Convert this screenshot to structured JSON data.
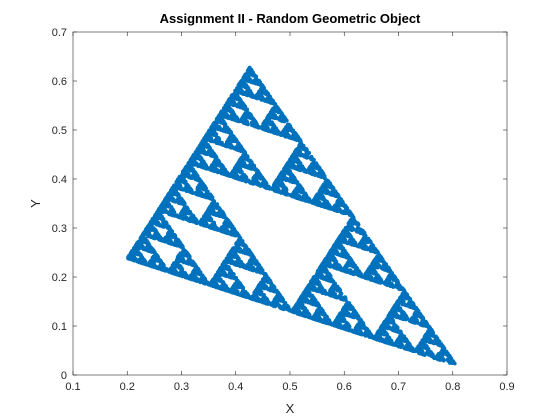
{
  "chart_data": {
    "type": "scatter",
    "title": "Assignment II - Random Geometric Object",
    "xlabel": "X",
    "ylabel": "Y",
    "xlim": [
      0.1,
      0.9
    ],
    "ylim": [
      0,
      0.7
    ],
    "x_ticks": [
      0.1,
      0.2,
      0.3,
      0.4,
      0.5,
      0.6,
      0.7,
      0.8,
      0.9
    ],
    "y_ticks": [
      0,
      0.1,
      0.2,
      0.3,
      0.4,
      0.5,
      0.6,
      0.7
    ],
    "x_tick_labels": [
      "0.1",
      "0.2",
      "0.3",
      "0.4",
      "0.5",
      "0.6",
      "0.7",
      "0.8",
      "0.9"
    ],
    "y_tick_labels": [
      "0",
      "0.1",
      "0.2",
      "0.3",
      "0.4",
      "0.5",
      "0.6",
      "0.7"
    ],
    "grid": false,
    "box": true,
    "marker_color": "#0072BD",
    "axis_color": "#262626",
    "shape": "Sierpinski triangle",
    "vertices": [
      {
        "x": 0.2,
        "y": 0.238
      },
      {
        "x": 0.426,
        "y": 0.628
      },
      {
        "x": 0.806,
        "y": 0.02
      }
    ]
  }
}
